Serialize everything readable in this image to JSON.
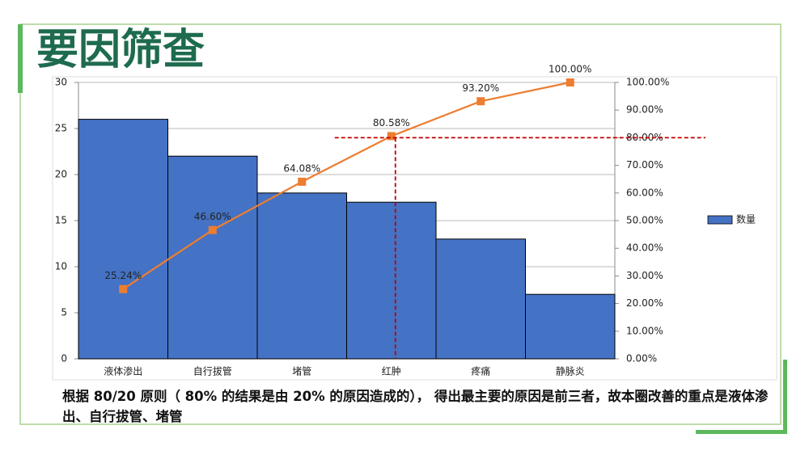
{
  "slide": {
    "title": "要因筛查",
    "caption": "根据 80/20 原则（ 80% 的结果是由 20% 的原因造成的）， 得出最主要的原因是前三者，故本圈改善的重点是液体渗出、自行拔管、堵管"
  },
  "chart_data": {
    "type": "bar",
    "categories": [
      "液体渗出",
      "自行拔管",
      "堵管",
      "红肿",
      "疼痛",
      "静脉炎"
    ],
    "series": [
      {
        "name": "数量",
        "type": "bar",
        "color": "#4472c4",
        "values": [
          26,
          22,
          18,
          17,
          13,
          7
        ]
      },
      {
        "type": "line",
        "axis": "y2",
        "color": "#ed7d31",
        "values": [
          25.24,
          46.6,
          64.08,
          80.58,
          93.2,
          100.0
        ],
        "value_labels": [
          "25.24%",
          "46.60%",
          "64.08%",
          "80.58%",
          "93.20%",
          "100.00%"
        ]
      }
    ],
    "ylim": [
      0,
      30
    ],
    "yticks": [
      0,
      5,
      10,
      15,
      20,
      25,
      30
    ],
    "y2lim": [
      0,
      100
    ],
    "y2ticks": [
      {
        "value": 0,
        "label": "0.00%"
      },
      {
        "value": 10,
        "label": "10.00%"
      },
      {
        "value": 20,
        "label": "20.00%"
      },
      {
        "value": 30,
        "label": "30.00%"
      },
      {
        "value": 40,
        "label": "40.00%"
      },
      {
        "value": 50,
        "label": "50.00%"
      },
      {
        "value": 60,
        "label": "60.00%"
      },
      {
        "value": 70,
        "label": "70.00%"
      },
      {
        "value": 80,
        "label": "80.00%"
      },
      {
        "value": 90,
        "label": "90.00%"
      },
      {
        "value": 100,
        "label": "100.00%"
      }
    ],
    "threshold": 80,
    "grid": true,
    "legend": "right"
  }
}
